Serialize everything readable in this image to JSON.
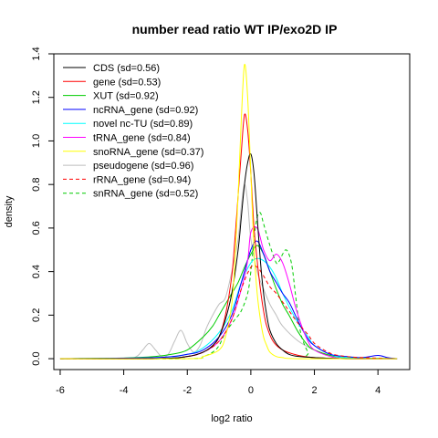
{
  "chart_data": {
    "type": "line",
    "title": "number read ratio WT IP/exo2D IP",
    "xlabel": "log2 ratio",
    "ylabel": "density",
    "xlim": [
      -6.2,
      5.0
    ],
    "ylim": [
      -0.05,
      1.4
    ],
    "xticks": [
      -6,
      -4,
      -2,
      0,
      2,
      4
    ],
    "yticks": [
      0.0,
      0.2,
      0.4,
      0.6,
      0.8,
      1.0,
      1.2,
      1.4
    ],
    "grid": false,
    "legend_position": "top-left",
    "series": [
      {
        "name": "CDS (sd=0.56)",
        "color": "#000000",
        "dash": false,
        "x": [
          -6,
          -3,
          -2,
          -1.5,
          -1.2,
          -1,
          -0.8,
          -0.6,
          -0.4,
          -0.3,
          -0.2,
          -0.1,
          0,
          0.1,
          0.2,
          0.3,
          0.4,
          0.5,
          0.6,
          0.8,
          1,
          1.2,
          1.5,
          2,
          3,
          4.6
        ],
        "y": [
          0,
          0,
          0.01,
          0.03,
          0.06,
          0.1,
          0.18,
          0.3,
          0.5,
          0.65,
          0.8,
          0.9,
          0.94,
          0.85,
          0.65,
          0.45,
          0.3,
          0.2,
          0.13,
          0.07,
          0.04,
          0.02,
          0.01,
          0.005,
          0,
          0
        ]
      },
      {
        "name": "gene (sd=0.53)",
        "color": "#ff0000",
        "dash": false,
        "x": [
          -6,
          -3,
          -2,
          -1.5,
          -1.2,
          -1,
          -0.8,
          -0.6,
          -0.5,
          -0.4,
          -0.3,
          -0.2,
          -0.1,
          0,
          0.1,
          0.2,
          0.3,
          0.4,
          0.5,
          0.7,
          1,
          1.5,
          2,
          3,
          4.6
        ],
        "y": [
          0,
          0,
          0.01,
          0.03,
          0.06,
          0.1,
          0.2,
          0.38,
          0.55,
          0.75,
          0.95,
          1.12,
          1.05,
          0.85,
          0.6,
          0.45,
          0.32,
          0.22,
          0.15,
          0.08,
          0.04,
          0.015,
          0.005,
          0,
          0
        ]
      },
      {
        "name": "XUT (sd=0.92)",
        "color": "#00cc00",
        "dash": false,
        "x": [
          -6,
          -4,
          -3,
          -2.5,
          -2,
          -1.5,
          -1.2,
          -1,
          -0.8,
          -0.6,
          -0.4,
          -0.2,
          0,
          0.2,
          0.4,
          0.6,
          0.8,
          1,
          1.2,
          1.5,
          1.8,
          2,
          2.5,
          3,
          4.6
        ],
        "y": [
          0,
          0.003,
          0.01,
          0.02,
          0.04,
          0.1,
          0.15,
          0.2,
          0.25,
          0.3,
          0.35,
          0.42,
          0.48,
          0.52,
          0.48,
          0.4,
          0.32,
          0.25,
          0.2,
          0.12,
          0.06,
          0.04,
          0.015,
          0.005,
          0
        ]
      },
      {
        "name": "ncRNA_gene (sd=0.92)",
        "color": "#0000ff",
        "dash": false,
        "x": [
          -6,
          -3,
          -2,
          -1.5,
          -1,
          -0.6,
          -0.3,
          0,
          0.2,
          0.4,
          0.6,
          0.8,
          1,
          1.2,
          1.4,
          1.6,
          1.8,
          2,
          2.5,
          3,
          3.5,
          4,
          4.3,
          4.6
        ],
        "y": [
          0,
          0.005,
          0.02,
          0.04,
          0.1,
          0.2,
          0.35,
          0.5,
          0.54,
          0.48,
          0.4,
          0.35,
          0.3,
          0.26,
          0.2,
          0.14,
          0.09,
          0.06,
          0.02,
          0.01,
          0.005,
          0.015,
          0.005,
          0
        ]
      },
      {
        "name": "novel nc-TU (sd=0.89)",
        "color": "#00ffff",
        "dash": false,
        "x": [
          -6,
          -3,
          -2,
          -1.5,
          -1,
          -0.6,
          -0.3,
          0,
          0.2,
          0.4,
          0.6,
          0.8,
          1,
          1.2,
          1.5,
          1.8,
          2,
          2.5,
          3,
          4.6
        ],
        "y": [
          0,
          0.005,
          0.02,
          0.05,
          0.12,
          0.22,
          0.35,
          0.44,
          0.46,
          0.45,
          0.42,
          0.37,
          0.3,
          0.24,
          0.16,
          0.1,
          0.06,
          0.02,
          0.005,
          0
        ]
      },
      {
        "name": "tRNA_gene (sd=0.84)",
        "color": "#ff00ff",
        "dash": false,
        "x": [
          -6,
          -3,
          -2,
          -1.5,
          -1,
          -0.6,
          -0.3,
          -0.1,
          0,
          0.2,
          0.4,
          0.6,
          0.8,
          1,
          1.2,
          1.4,
          1.6,
          1.8,
          2,
          2.5,
          3,
          4.6
        ],
        "y": [
          0,
          0,
          0.01,
          0.03,
          0.08,
          0.18,
          0.32,
          0.45,
          0.58,
          0.6,
          0.5,
          0.45,
          0.48,
          0.44,
          0.35,
          0.24,
          0.15,
          0.08,
          0.04,
          0.01,
          0,
          0
        ]
      },
      {
        "name": "snoRNA_gene (sd=0.37)",
        "color": "#ffff00",
        "dash": false,
        "x": [
          -6,
          -2,
          -1.5,
          -1,
          -0.8,
          -0.6,
          -0.5,
          -0.4,
          -0.3,
          -0.2,
          -0.1,
          0,
          0.1,
          0.2,
          0.3,
          0.4,
          0.5,
          0.6,
          0.8,
          1,
          1.5,
          4.6
        ],
        "y": [
          0,
          0,
          0.01,
          0.04,
          0.1,
          0.25,
          0.45,
          0.75,
          1.1,
          1.35,
          1.2,
          0.85,
          0.5,
          0.3,
          0.18,
          0.1,
          0.06,
          0.03,
          0.01,
          0.005,
          0,
          0
        ]
      },
      {
        "name": "pseudogene (sd=0.96)",
        "color": "#bebebe",
        "dash": false,
        "x": [
          -6,
          -4,
          -3.6,
          -3.4,
          -3.2,
          -3,
          -2.8,
          -2.6,
          -2.4,
          -2.2,
          -2,
          -1.8,
          -1.6,
          -1.4,
          -1.2,
          -1,
          -0.8,
          -0.6,
          -0.4,
          -0.3,
          -0.2,
          -0.1,
          0,
          0.2,
          0.4,
          0.6,
          0.8,
          1,
          1.5,
          2,
          2.5,
          3,
          4.6
        ],
        "y": [
          0,
          0,
          0.01,
          0.04,
          0.07,
          0.04,
          0.01,
          0.02,
          0.08,
          0.13,
          0.07,
          0.03,
          0.06,
          0.14,
          0.2,
          0.25,
          0.28,
          0.4,
          0.55,
          0.7,
          0.8,
          0.72,
          0.55,
          0.4,
          0.32,
          0.25,
          0.2,
          0.15,
          0.08,
          0.04,
          0.015,
          0.005,
          0
        ]
      },
      {
        "name": "rRNA_gene (sd=0.94)",
        "color": "#ff0000",
        "dash": true,
        "x": [
          -6,
          -3,
          -2,
          -1.5,
          -1,
          -0.6,
          -0.3,
          0,
          0.2,
          0.4,
          0.6,
          0.8,
          1,
          1.2,
          1.5,
          1.8,
          2,
          2.3,
          2.6,
          3,
          3.5,
          4.6
        ],
        "y": [
          0,
          0,
          0.01,
          0.03,
          0.08,
          0.18,
          0.32,
          0.42,
          0.42,
          0.38,
          0.33,
          0.3,
          0.26,
          0.22,
          0.16,
          0.11,
          0.07,
          0.04,
          0.02,
          0.01,
          0.005,
          0
        ]
      },
      {
        "name": "snRNA_gene (sd=0.52)",
        "color": "#00cc00",
        "dash": true,
        "x": [
          -6,
          -2,
          -1.5,
          -1.2,
          -1,
          -0.8,
          -0.5,
          -0.3,
          -0.1,
          0,
          0.1,
          0.2,
          0.3,
          0.4,
          0.6,
          0.8,
          0.9,
          1,
          1.1,
          1.2,
          1.3,
          1.4,
          1.5,
          1.6,
          1.8,
          2,
          4.6
        ],
        "y": [
          0,
          0,
          0.01,
          0.03,
          0.06,
          0.12,
          0.18,
          0.22,
          0.3,
          0.4,
          0.55,
          0.65,
          0.67,
          0.62,
          0.52,
          0.44,
          0.45,
          0.48,
          0.5,
          0.48,
          0.42,
          0.3,
          0.18,
          0.1,
          0.03,
          0.005,
          0
        ]
      }
    ]
  }
}
